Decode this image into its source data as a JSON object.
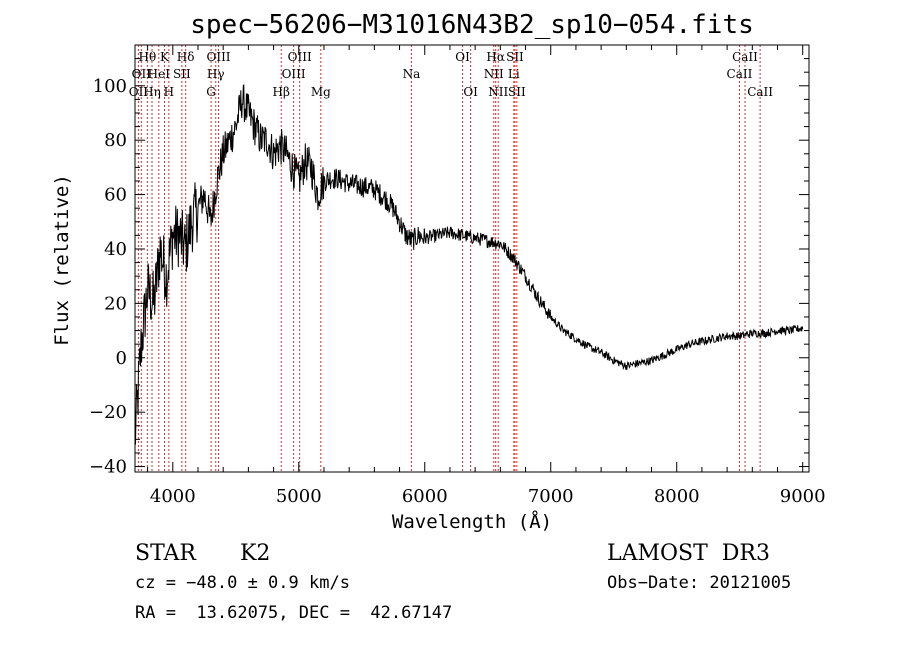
{
  "chart_data": {
    "type": "line",
    "title": "spec−56206−M31016N43B2_sp10−054.fits",
    "xlabel": "Wavelength (Å)",
    "ylabel": "Flux (relative)",
    "xlim": [
      3700,
      9050
    ],
    "ylim": [
      -42,
      115
    ],
    "x_ticks": [
      4000,
      5000,
      6000,
      7000,
      8000,
      9000
    ],
    "x_tick_labels": [
      "4000",
      "5000",
      "6000",
      "7000",
      "8000",
      "9000"
    ],
    "y_ticks": [
      -40,
      -20,
      0,
      20,
      40,
      60,
      80,
      100
    ],
    "y_tick_labels": [
      "−40",
      "−20",
      "0",
      "20",
      "40",
      "60",
      "80",
      "100"
    ],
    "line_color": "#000000",
    "marker_color": "#cc3333",
    "series": [
      {
        "name": "flux",
        "x": [
          3700,
          3750,
          3800,
          3850,
          3900,
          3950,
          4000,
          4050,
          4100,
          4150,
          4200,
          4250,
          4300,
          4350,
          4400,
          4450,
          4500,
          4550,
          4600,
          4650,
          4700,
          4750,
          4800,
          4850,
          4900,
          4950,
          5000,
          5050,
          5100,
          5150,
          5200,
          5250,
          5300,
          5400,
          5500,
          5600,
          5700,
          5750,
          5800,
          5850,
          5900,
          5950,
          6000,
          6100,
          6200,
          6300,
          6400,
          6500,
          6600,
          6700,
          6800,
          6900,
          7000,
          7100,
          7200,
          7300,
          7400,
          7500,
          7600,
          7700,
          7800,
          7900,
          8000,
          8100,
          8200,
          8300,
          8400,
          8500,
          8600,
          8700,
          8800,
          8900,
          9000
        ],
        "y": [
          -30,
          5,
          25,
          20,
          40,
          30,
          45,
          45,
          40,
          50,
          55,
          60,
          50,
          65,
          75,
          80,
          85,
          95,
          90,
          85,
          80,
          80,
          75,
          78,
          75,
          70,
          65,
          72,
          70,
          60,
          65,
          66,
          66,
          64,
          63,
          62,
          58,
          55,
          50,
          45,
          43,
          45,
          44,
          45,
          46,
          45,
          44,
          43,
          42,
          37,
          30,
          22,
          15,
          10,
          7,
          4,
          2,
          -1,
          -3,
          -2,
          -1,
          1,
          3,
          5,
          6,
          7,
          8,
          8,
          9,
          9,
          10,
          10,
          11
        ]
      }
    ],
    "lines": [
      {
        "w": 3727,
        "label": "OII",
        "row": 3
      },
      {
        "w": 3750,
        "label": "OII",
        "row": 2
      },
      {
        "w": 3798,
        "label": "Hθ",
        "row": 1
      },
      {
        "w": 3835,
        "label": "Hη",
        "row": 3
      },
      {
        "w": 3889,
        "label": "HeI",
        "row": 2
      },
      {
        "w": 3934,
        "label": "K",
        "row": 1
      },
      {
        "w": 3969,
        "label": "H",
        "row": 3
      },
      {
        "w": 4072,
        "label": "SII",
        "row": 2
      },
      {
        "w": 4102,
        "label": "Hδ",
        "row": 1
      },
      {
        "w": 4304,
        "label": "G",
        "row": 3
      },
      {
        "w": 4341,
        "label": "Hγ",
        "row": 2
      },
      {
        "w": 4363,
        "label": "OIII",
        "row": 1
      },
      {
        "w": 4861,
        "label": "Hβ",
        "row": 3
      },
      {
        "w": 4959,
        "label": "OIII",
        "row": 2
      },
      {
        "w": 5007,
        "label": "OIII",
        "row": 1
      },
      {
        "w": 5175,
        "label": "Mg",
        "row": 3
      },
      {
        "w": 5894,
        "label": "Na",
        "row": 2
      },
      {
        "w": 6300,
        "label": "OI",
        "row": 1
      },
      {
        "w": 6364,
        "label": "OI",
        "row": 3
      },
      {
        "w": 6548,
        "label": "NII",
        "row": 2
      },
      {
        "w": 6563,
        "label": "Hα",
        "row": 1
      },
      {
        "w": 6583,
        "label": "NII",
        "row": 3
      },
      {
        "w": 6707,
        "label": "Li",
        "row": 2
      },
      {
        "w": 6716,
        "label": "SII",
        "row": 1
      },
      {
        "w": 6731,
        "label": "SII",
        "row": 3
      },
      {
        "w": 8498,
        "label": "CaII",
        "row": 2
      },
      {
        "w": 8542,
        "label": "CaII",
        "row": 1
      },
      {
        "w": 8662,
        "label": "CaII",
        "row": 3
      }
    ]
  },
  "info": {
    "class": "STAR",
    "subclass": "K2",
    "survey": "LAMOST  DR3",
    "cz": "cz = −48.0 ± 0.9 km/s",
    "obs_date": "Obs−Date: 20121005",
    "radec": "RA =  13.62075, DEC =  42.67147"
  }
}
